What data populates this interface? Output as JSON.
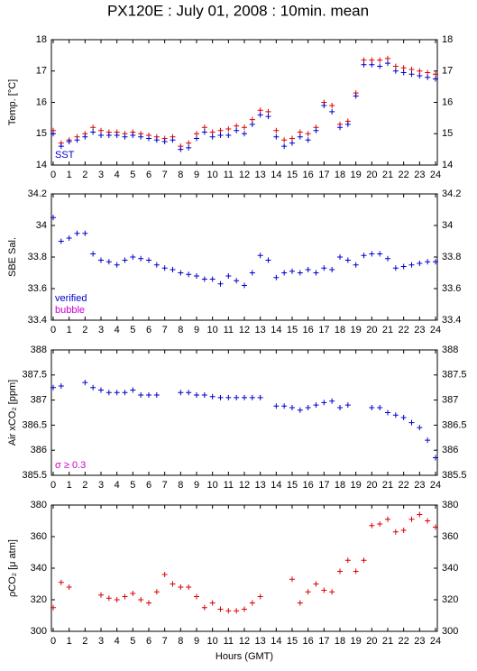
{
  "title": "PX120E : July 01, 2008 : 10min. mean",
  "chart_data": [
    {
      "type": "scatter",
      "ylabel": "Temp. [°C]",
      "x": [
        0,
        0.5,
        1,
        1.5,
        2,
        2.5,
        3,
        3.5,
        4,
        4.5,
        5,
        5.5,
        6,
        6.5,
        7,
        7.5,
        8,
        8.5,
        9,
        9.5,
        10,
        10.5,
        11,
        11.5,
        12,
        12.5,
        13,
        13.5,
        14,
        14.5,
        15,
        15.5,
        16,
        16.5,
        17,
        17.5,
        18,
        18.5,
        19,
        19.5,
        20,
        20.5,
        21,
        21.5,
        22,
        22.5,
        23,
        23.5,
        24
      ],
      "xlim": [
        0,
        24
      ],
      "xticks": [
        0,
        1,
        2,
        3,
        4,
        5,
        6,
        7,
        8,
        9,
        10,
        11,
        12,
        13,
        14,
        15,
        16,
        17,
        18,
        19,
        20,
        21,
        22,
        23,
        24
      ],
      "ylim": [
        14,
        18
      ],
      "yticks": [
        14,
        15,
        16,
        17,
        18
      ],
      "series": [
        {
          "color": "#dd0000",
          "values": [
            15.1,
            14.7,
            14.8,
            14.9,
            15.0,
            15.2,
            15.1,
            15.05,
            15.05,
            15.0,
            15.05,
            15.0,
            14.95,
            14.9,
            14.85,
            14.9,
            14.6,
            14.7,
            15.0,
            15.2,
            15.05,
            15.1,
            15.15,
            15.25,
            15.2,
            15.45,
            15.75,
            15.7,
            15.1,
            14.8,
            14.85,
            15.05,
            15.0,
            15.2,
            16.0,
            15.9,
            15.3,
            15.4,
            16.3,
            17.35,
            17.35,
            17.35,
            17.4,
            17.15,
            17.1,
            17.05,
            17.0,
            16.95,
            16.9
          ]
        },
        {
          "name": "SST",
          "color": "#0000cc",
          "values": [
            15.0,
            14.6,
            14.75,
            14.8,
            14.9,
            15.05,
            14.95,
            14.95,
            14.95,
            14.9,
            14.95,
            14.9,
            14.85,
            14.8,
            14.75,
            14.8,
            14.5,
            14.55,
            14.85,
            15.05,
            14.9,
            14.95,
            14.95,
            15.1,
            15.0,
            15.3,
            15.6,
            15.55,
            14.9,
            14.6,
            14.7,
            14.9,
            14.8,
            15.1,
            15.9,
            15.7,
            15.2,
            15.3,
            16.2,
            17.2,
            17.2,
            17.15,
            17.25,
            17.0,
            16.95,
            16.9,
            16.85,
            16.8,
            16.75
          ]
        }
      ]
    },
    {
      "type": "scatter",
      "ylabel": "SBE Sal.",
      "x": [
        0,
        0.5,
        1,
        1.5,
        2,
        2.5,
        3,
        3.5,
        4,
        4.5,
        5,
        5.5,
        6,
        6.5,
        7,
        7.5,
        8,
        8.5,
        9,
        9.5,
        10,
        10.5,
        11,
        11.5,
        12,
        12.5,
        13,
        13.5,
        14,
        14.5,
        15,
        15.5,
        16,
        16.5,
        17,
        17.5,
        18,
        18.5,
        19,
        19.5,
        20,
        20.5,
        21,
        21.5,
        22,
        22.5,
        23,
        23.5,
        24
      ],
      "xlim": [
        0,
        24
      ],
      "xticks": [
        0,
        1,
        2,
        3,
        4,
        5,
        6,
        7,
        8,
        9,
        10,
        11,
        12,
        13,
        14,
        15,
        16,
        17,
        18,
        19,
        20,
        21,
        22,
        23,
        24
      ],
      "ylim": [
        33.4,
        34.2
      ],
      "yticks": [
        33.4,
        33.6,
        33.8,
        34,
        34.2
      ],
      "annotations": [
        {
          "text": "bubble",
          "color": "#cc00cc"
        }
      ],
      "series": [
        {
          "name": "verified",
          "color": "#0000cc",
          "values": [
            34.05,
            33.9,
            33.92,
            33.95,
            33.95,
            33.82,
            33.78,
            33.77,
            33.75,
            33.78,
            33.8,
            33.79,
            33.78,
            33.75,
            33.73,
            33.72,
            33.7,
            33.69,
            33.68,
            33.66,
            33.66,
            33.63,
            33.68,
            33.65,
            33.62,
            33.7,
            33.81,
            33.78,
            33.67,
            33.7,
            33.71,
            33.7,
            33.72,
            33.7,
            33.73,
            33.72,
            33.8,
            33.78,
            33.75,
            33.81,
            33.82,
            33.82,
            33.79,
            33.73,
            33.74,
            33.75,
            33.76,
            33.77,
            33.77
          ]
        }
      ]
    },
    {
      "type": "scatter",
      "ylabel": "Air xCO₂ [ppm]",
      "x": [
        0,
        0.5,
        1,
        1.5,
        2,
        2.5,
        3,
        3.5,
        4,
        4.5,
        5,
        5.5,
        6,
        6.5,
        7,
        7.5,
        8,
        8.5,
        9,
        9.5,
        10,
        10.5,
        11,
        11.5,
        12,
        12.5,
        13,
        13.5,
        14,
        14.5,
        15,
        15.5,
        16,
        16.5,
        17,
        17.5,
        18,
        18.5,
        19,
        19.5,
        20,
        20.5,
        21,
        21.5,
        22,
        22.5,
        23,
        23.5,
        24
      ],
      "xlim": [
        0,
        24
      ],
      "xticks": [
        0,
        1,
        2,
        3,
        4,
        5,
        6,
        7,
        8,
        9,
        10,
        11,
        12,
        13,
        14,
        15,
        16,
        17,
        18,
        19,
        20,
        21,
        22,
        23,
        24
      ],
      "ylim": [
        385.5,
        388
      ],
      "yticks": [
        385.5,
        386,
        386.5,
        387,
        387.5,
        388
      ],
      "annotations": [
        {
          "text": "σ ≥ 0.3",
          "color": "#cc00cc"
        }
      ],
      "series": [
        {
          "color": "#0000cc",
          "values": [
            387.25,
            387.28,
            null,
            null,
            387.35,
            387.25,
            387.2,
            387.15,
            387.15,
            387.15,
            387.2,
            387.1,
            387.1,
            387.1,
            null,
            null,
            387.15,
            387.15,
            387.1,
            387.1,
            387.07,
            387.05,
            387.05,
            387.05,
            387.05,
            387.05,
            387.05,
            null,
            386.88,
            386.88,
            386.85,
            386.8,
            386.85,
            386.9,
            386.95,
            386.98,
            386.85,
            386.9,
            null,
            null,
            386.85,
            386.85,
            386.75,
            386.7,
            386.65,
            386.55,
            386.45,
            386.2,
            385.85
          ]
        }
      ]
    },
    {
      "type": "scatter",
      "ylabel": "ρCO₂ [μ atm]",
      "xlabel": "Hours (GMT)",
      "x": [
        0,
        0.5,
        1,
        1.5,
        2,
        2.5,
        3,
        3.5,
        4,
        4.5,
        5,
        5.5,
        6,
        6.5,
        7,
        7.5,
        8,
        8.5,
        9,
        9.5,
        10,
        10.5,
        11,
        11.5,
        12,
        12.5,
        13,
        13.5,
        14,
        14.5,
        15,
        15.5,
        16,
        16.5,
        17,
        17.5,
        18,
        18.5,
        19,
        19.5,
        20,
        20.5,
        21,
        21.5,
        22,
        22.5,
        23,
        23.5,
        24
      ],
      "xlim": [
        0,
        24
      ],
      "xticks": [
        0,
        1,
        2,
        3,
        4,
        5,
        6,
        7,
        8,
        9,
        10,
        11,
        12,
        13,
        14,
        15,
        16,
        17,
        18,
        19,
        20,
        21,
        22,
        23,
        24
      ],
      "ylim": [
        300,
        380
      ],
      "yticks": [
        300,
        320,
        340,
        360,
        380
      ],
      "series": [
        {
          "color": "#dd0000",
          "values": [
            315,
            331,
            328,
            null,
            null,
            null,
            323,
            321,
            320,
            322,
            324,
            320,
            318,
            325,
            336,
            330,
            328,
            328,
            322,
            315,
            318,
            314,
            313,
            313,
            314,
            318,
            322,
            null,
            null,
            null,
            333,
            318,
            325,
            330,
            326,
            325,
            338,
            345,
            338,
            345,
            367,
            368,
            371,
            363,
            364,
            371,
            374,
            370,
            366
          ]
        }
      ]
    }
  ]
}
